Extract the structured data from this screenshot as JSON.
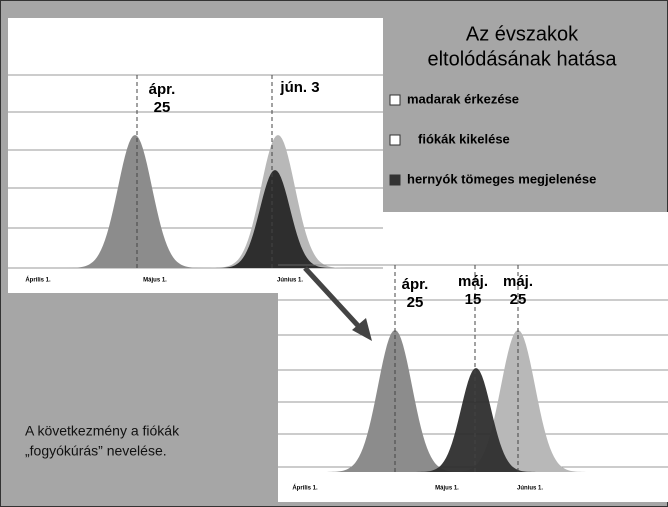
{
  "title": [
    "Az évszakok",
    "eltolódásának hatása"
  ],
  "legend": [
    "madarak érkezése",
    "fiókák kikelése",
    "hernyók tömeges megjelenése"
  ],
  "top_chart": {
    "labels": [
      [
        "ápr.",
        "25"
      ],
      [
        "jún. 3"
      ]
    ],
    "axis": [
      "Április 1.",
      "Május 1.",
      "Június 1."
    ]
  },
  "bottom_chart": {
    "labels": [
      [
        "ápr.",
        "25"
      ],
      [
        "máj.",
        "15"
      ],
      [
        "máj.",
        "25"
      ]
    ],
    "axis": [
      "Április 1.",
      "Május 1.",
      "Június 1."
    ]
  },
  "conclusion": [
    "A következmény a fiókák",
    "„fogyókúrás” nevelése."
  ]
}
